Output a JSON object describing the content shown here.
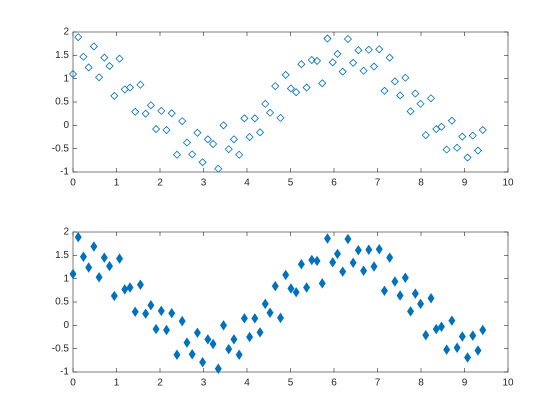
{
  "chart_data": [
    {
      "type": "scatter",
      "marker": "diamond",
      "filled": false,
      "color": "#0072bd",
      "xlim": [
        0,
        10
      ],
      "ylim": [
        -1,
        2
      ],
      "xticks": [
        0,
        1,
        2,
        3,
        4,
        5,
        6,
        7,
        8,
        9,
        10
      ],
      "yticks": [
        -1,
        -0.5,
        0,
        0.5,
        1,
        1.5,
        2
      ],
      "x": [
        0.0,
        0.12,
        0.24,
        0.36,
        0.48,
        0.6,
        0.72,
        0.84,
        0.95,
        1.07,
        1.19,
        1.31,
        1.43,
        1.55,
        1.67,
        1.79,
        1.91,
        2.03,
        2.15,
        2.27,
        2.39,
        2.51,
        2.62,
        2.74,
        2.86,
        2.98,
        3.1,
        3.22,
        3.34,
        3.46,
        3.58,
        3.7,
        3.82,
        3.94,
        4.06,
        4.18,
        4.3,
        4.42,
        4.53,
        4.65,
        4.77,
        4.89,
        5.01,
        5.13,
        5.25,
        5.37,
        5.49,
        5.61,
        5.73,
        5.85,
        5.97,
        6.08,
        6.2,
        6.32,
        6.44,
        6.56,
        6.68,
        6.8,
        6.92,
        7.04,
        7.16,
        7.28,
        7.4,
        7.52,
        7.64,
        7.76,
        7.87,
        7.99,
        8.11,
        8.23,
        8.35,
        8.47,
        8.59,
        8.71,
        8.83,
        8.95,
        9.07,
        9.19,
        9.31,
        9.42
      ],
      "values": [
        1.1,
        1.89,
        1.47,
        1.24,
        1.69,
        1.03,
        1.45,
        1.27,
        0.63,
        1.43,
        0.77,
        0.81,
        0.29,
        0.87,
        0.25,
        0.43,
        -0.08,
        0.31,
        -0.1,
        0.26,
        -0.63,
        0.09,
        -0.37,
        -0.62,
        -0.16,
        -0.79,
        -0.3,
        -0.4,
        -0.93,
        0.0,
        -0.51,
        -0.3,
        -0.63,
        0.15,
        -0.25,
        0.15,
        -0.15,
        0.46,
        0.27,
        0.84,
        0.16,
        1.08,
        0.79,
        0.71,
        1.31,
        0.81,
        1.4,
        1.38,
        0.9,
        1.86,
        1.35,
        1.53,
        1.15,
        1.85,
        1.34,
        1.61,
        1.17,
        1.62,
        1.26,
        1.63,
        0.74,
        1.45,
        0.94,
        0.64,
        1.02,
        0.3,
        0.68,
        0.46,
        -0.21,
        0.58,
        -0.08,
        -0.03,
        -0.52,
        0.1,
        -0.48,
        -0.24,
        -0.69,
        -0.22,
        -0.54,
        -0.1
      ]
    },
    {
      "type": "scatter",
      "marker": "diamond",
      "filled": true,
      "color": "#0072bd",
      "xlim": [
        0,
        10
      ],
      "ylim": [
        -1,
        2
      ],
      "xticks": [
        0,
        1,
        2,
        3,
        4,
        5,
        6,
        7,
        8,
        9,
        10
      ],
      "yticks": [
        -1,
        -0.5,
        0,
        0.5,
        1,
        1.5,
        2
      ],
      "x": [
        0.0,
        0.12,
        0.24,
        0.36,
        0.48,
        0.6,
        0.72,
        0.84,
        0.95,
        1.07,
        1.19,
        1.31,
        1.43,
        1.55,
        1.67,
        1.79,
        1.91,
        2.03,
        2.15,
        2.27,
        2.39,
        2.51,
        2.62,
        2.74,
        2.86,
        2.98,
        3.1,
        3.22,
        3.34,
        3.46,
        3.58,
        3.7,
        3.82,
        3.94,
        4.06,
        4.18,
        4.3,
        4.42,
        4.53,
        4.65,
        4.77,
        4.89,
        5.01,
        5.13,
        5.25,
        5.37,
        5.49,
        5.61,
        5.73,
        5.85,
        5.97,
        6.08,
        6.2,
        6.32,
        6.44,
        6.56,
        6.68,
        6.8,
        6.92,
        7.04,
        7.16,
        7.28,
        7.4,
        7.52,
        7.64,
        7.76,
        7.87,
        7.99,
        8.11,
        8.23,
        8.35,
        8.47,
        8.59,
        8.71,
        8.83,
        8.95,
        9.07,
        9.19,
        9.31,
        9.42
      ],
      "values": [
        1.1,
        1.89,
        1.47,
        1.24,
        1.69,
        1.03,
        1.45,
        1.27,
        0.63,
        1.43,
        0.77,
        0.81,
        0.29,
        0.87,
        0.25,
        0.43,
        -0.08,
        0.31,
        -0.1,
        0.26,
        -0.63,
        0.09,
        -0.37,
        -0.62,
        -0.16,
        -0.79,
        -0.3,
        -0.4,
        -0.93,
        0.0,
        -0.51,
        -0.3,
        -0.63,
        0.15,
        -0.25,
        0.15,
        -0.15,
        0.46,
        0.27,
        0.84,
        0.16,
        1.08,
        0.79,
        0.71,
        1.31,
        0.81,
        1.4,
        1.38,
        0.9,
        1.86,
        1.35,
        1.53,
        1.15,
        1.85,
        1.34,
        1.61,
        1.17,
        1.62,
        1.26,
        1.63,
        0.74,
        1.45,
        0.94,
        0.64,
        1.02,
        0.3,
        0.68,
        0.46,
        -0.21,
        0.58,
        -0.08,
        -0.03,
        -0.52,
        0.1,
        -0.48,
        -0.24,
        -0.69,
        -0.22,
        -0.54,
        -0.1
      ]
    }
  ]
}
